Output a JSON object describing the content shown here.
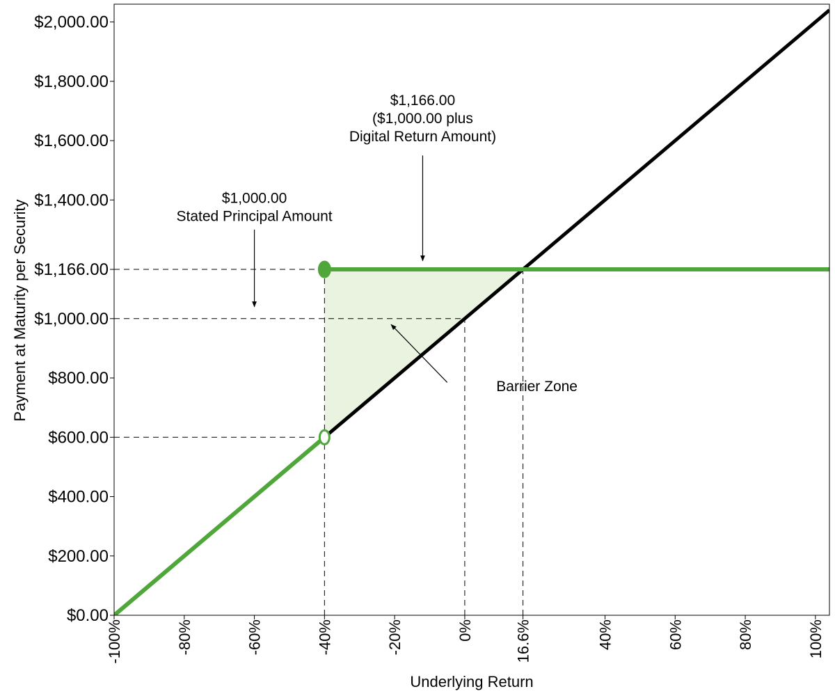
{
  "chart_data": {
    "type": "line",
    "xlabel": "Underlying Return",
    "ylabel": "Payment at Maturity per Security",
    "xlim": [
      -100,
      104
    ],
    "ylim": [
      0,
      2060
    ],
    "x_ticks": [
      {
        "value": -100,
        "label": "-100%"
      },
      {
        "value": -80,
        "label": "-80%"
      },
      {
        "value": -60,
        "label": "-60%"
      },
      {
        "value": -40,
        "label": "-40%"
      },
      {
        "value": -20,
        "label": "-20%"
      },
      {
        "value": 0,
        "label": "0%"
      },
      {
        "value": 16.6,
        "label": "16.6%"
      },
      {
        "value": 40,
        "label": "40%"
      },
      {
        "value": 60,
        "label": "60%"
      },
      {
        "value": 80,
        "label": "80%"
      },
      {
        "value": 100,
        "label": "100%"
      }
    ],
    "y_ticks": [
      {
        "value": 0,
        "label": "$0.00"
      },
      {
        "value": 200,
        "label": "$200.00"
      },
      {
        "value": 400,
        "label": "$400.00"
      },
      {
        "value": 600,
        "label": "$600.00"
      },
      {
        "value": 800,
        "label": "$800.00"
      },
      {
        "value": 1000,
        "label": "$1,000.00"
      },
      {
        "value": 1166,
        "label": "$1,166.00"
      },
      {
        "value": 1400,
        "label": "$1,400.00"
      },
      {
        "value": 1600,
        "label": "$1,600.00"
      },
      {
        "value": 1800,
        "label": "$1,800.00"
      },
      {
        "value": 2000,
        "label": "$2,000.00"
      }
    ],
    "series": [
      {
        "x": [
          -100,
          104
        ],
        "y": [
          0,
          2040
        ],
        "color": "#000000"
      },
      {
        "x": [
          -100,
          -40
        ],
        "y": [
          0,
          600
        ],
        "color": "#4fa63a"
      },
      {
        "x": [
          -40,
          104
        ],
        "y": [
          1166,
          1166
        ],
        "color": "#4fa63a"
      }
    ],
    "barrier_zone": {
      "polygon": [
        [
          -40,
          1166
        ],
        [
          16.6,
          1166
        ],
        [
          -40,
          600
        ]
      ],
      "fill": "#e9f3df"
    },
    "markers": [
      {
        "x": -40,
        "y": 1166,
        "style": "filled",
        "color": "#4fa63a"
      },
      {
        "x": -40,
        "y": 600,
        "style": "open",
        "color": "#4fa63a"
      }
    ],
    "reference_lines": {
      "horizontal": [
        {
          "y": 1166,
          "x_to": -40
        },
        {
          "y": 1000,
          "x_to": 0
        },
        {
          "y": 600,
          "x_to": -40
        }
      ],
      "vertical": [
        {
          "x": -40,
          "y_to": 1166
        },
        {
          "x": 0,
          "y_to": 1000
        },
        {
          "x": 16.6,
          "y_to": 1166
        }
      ]
    },
    "annotations": [
      {
        "lines": [
          "$1,166.00",
          "($1,000.00 plus",
          "Digital Return Amount)"
        ],
        "text_x": -12,
        "text_y": 1720,
        "arrow_from": [
          -12,
          1550
        ],
        "arrow_to": [
          -12,
          1195
        ]
      },
      {
        "lines": [
          "$1,000.00",
          "Stated Principal Amount"
        ],
        "text_x": -60,
        "text_y": 1390,
        "arrow_from": [
          -60,
          1300
        ],
        "arrow_to": [
          -60,
          1040
        ]
      },
      {
        "lines": [
          "Barrier Zone"
        ],
        "text_x": 9,
        "text_y": 755,
        "arrow_from": [
          -5,
          785
        ],
        "arrow_to": [
          -21,
          980
        ]
      }
    ]
  }
}
